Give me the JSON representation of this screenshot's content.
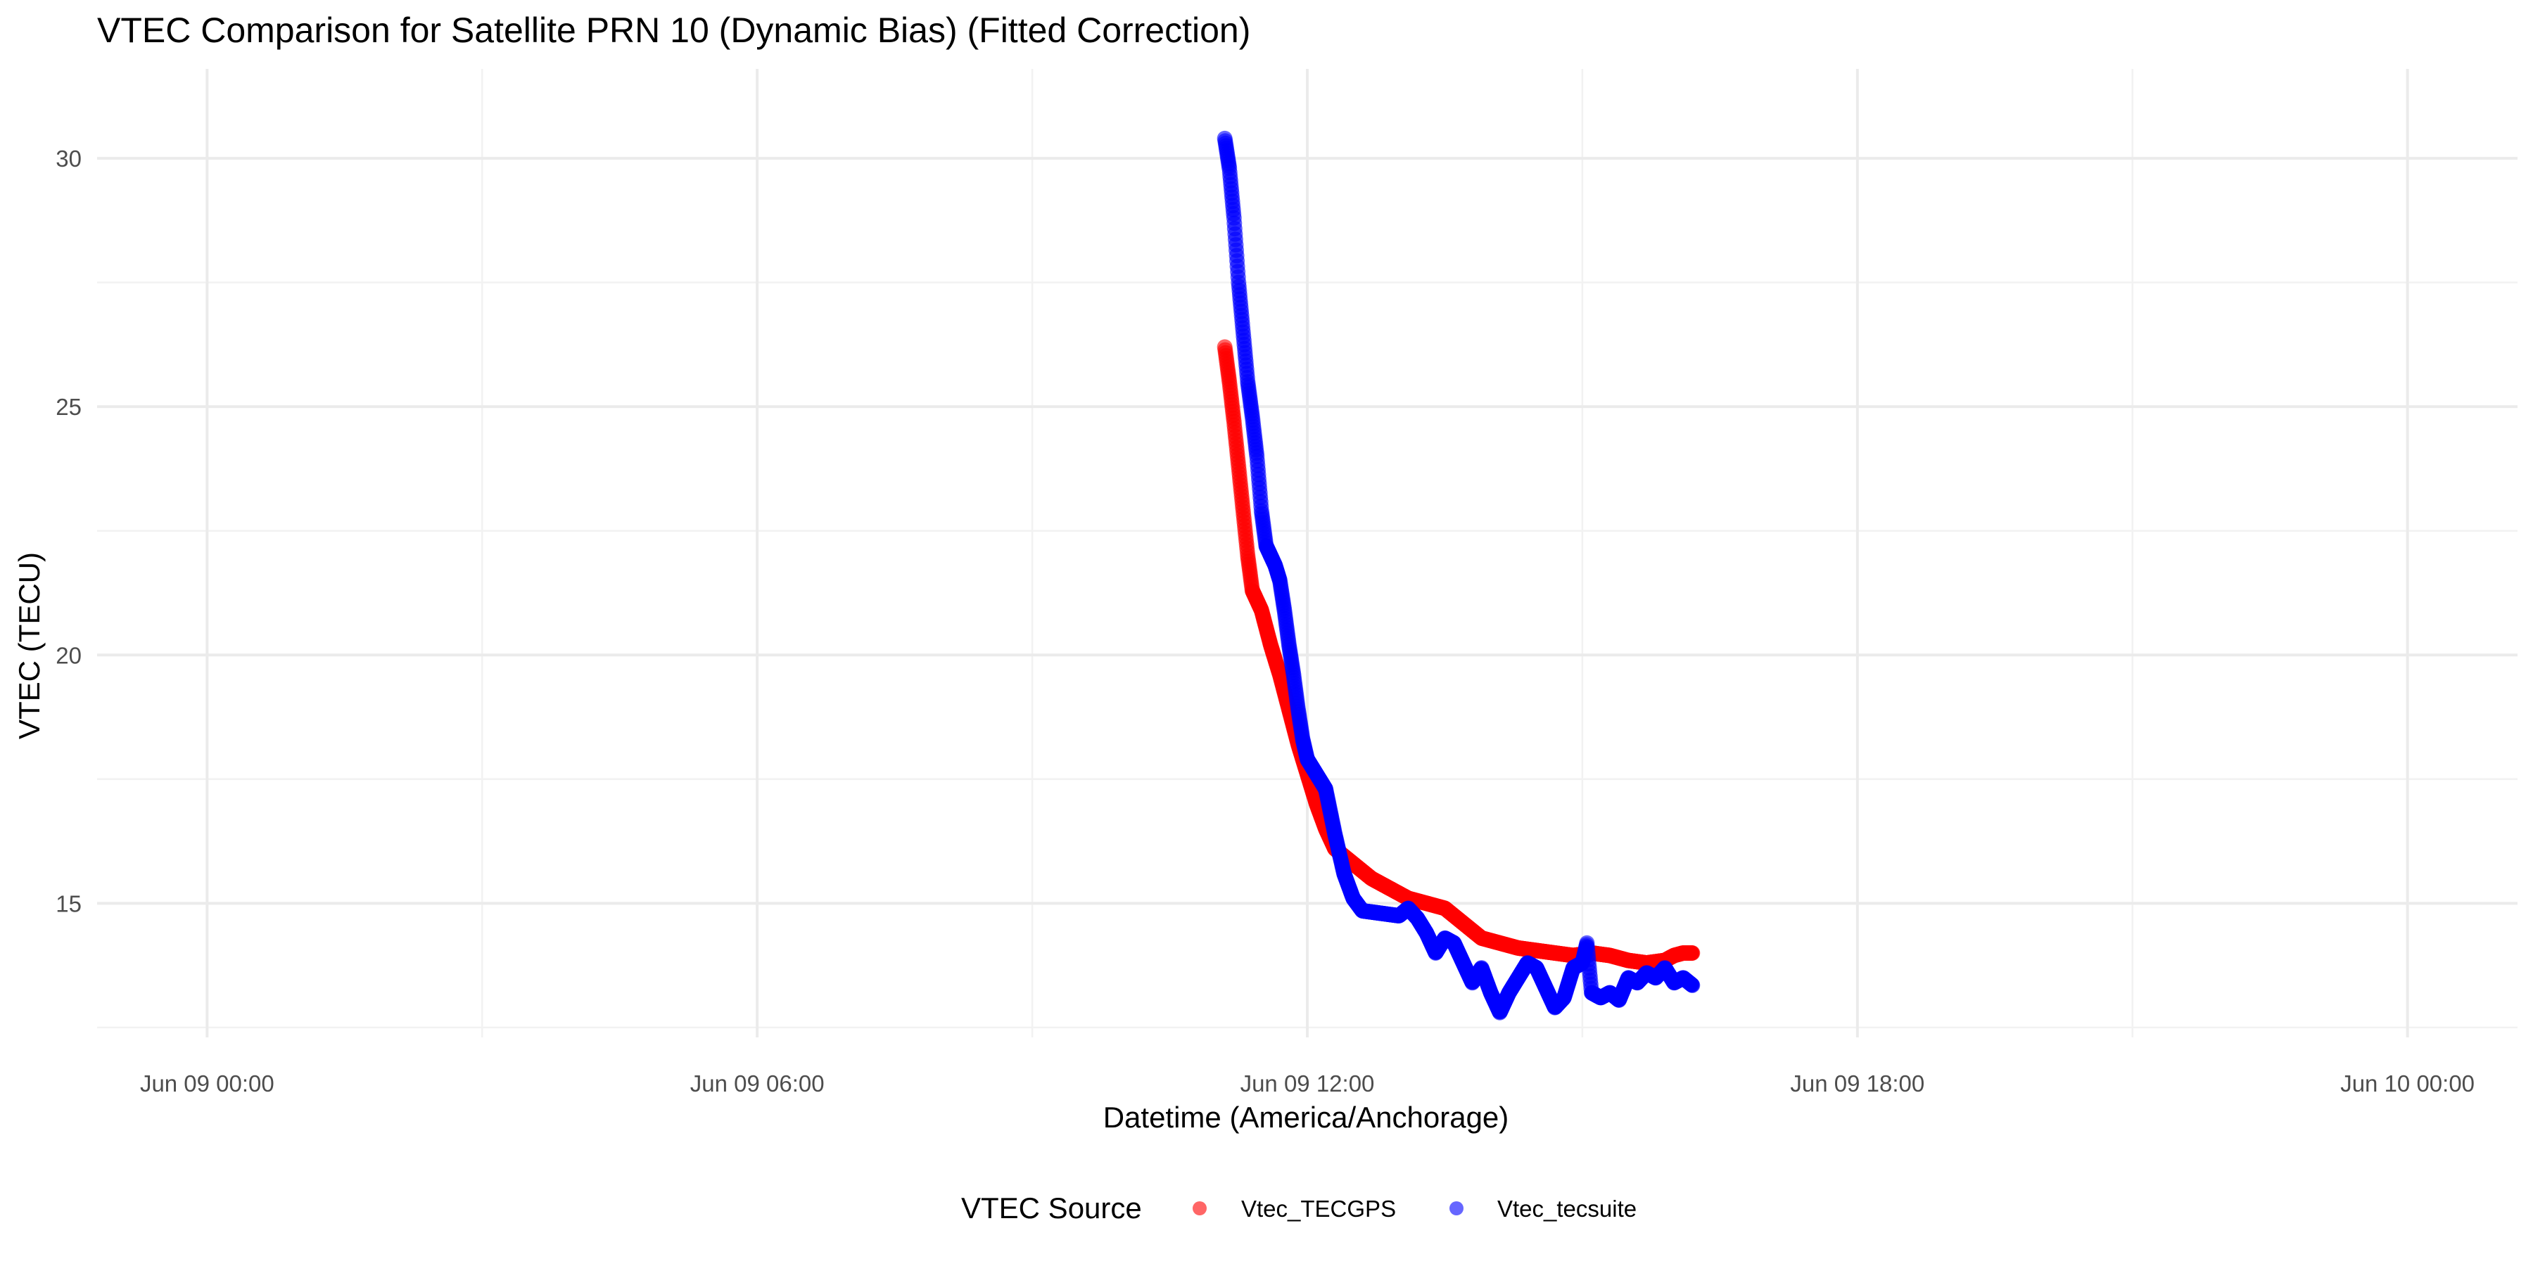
{
  "chart_data": {
    "type": "scatter",
    "title": "VTEC Comparison for Satellite PRN 10 (Dynamic Bias)   (Fitted Correction)",
    "xlabel": "Datetime (America/Anchorage)",
    "ylabel": "VTEC (TECU)",
    "x_type": "datetime",
    "xlim": [
      "2025-06-08 22:48",
      "2025-06-10 01:12"
    ],
    "ylim": [
      12.3,
      31.8
    ],
    "x_ticks": [
      {
        "value": "2025-06-09 00:00",
        "label": "Jun 09 00:00"
      },
      {
        "value": "2025-06-09 06:00",
        "label": "Jun 09 06:00"
      },
      {
        "value": "2025-06-09 12:00",
        "label": "Jun 09 12:00"
      },
      {
        "value": "2025-06-09 18:00",
        "label": "Jun 09 18:00"
      },
      {
        "value": "2025-06-10 00:00",
        "label": "Jun 10 00:00"
      }
    ],
    "x_minor_ticks": [
      "2025-06-09 03:00",
      "2025-06-09 09:00",
      "2025-06-09 15:00",
      "2025-06-09 21:00"
    ],
    "y_ticks": [
      15,
      20,
      25,
      30
    ],
    "y_minor_ticks": [
      12.5,
      17.5,
      22.5,
      27.5
    ],
    "grid": true,
    "legend": {
      "title": "VTEC Source",
      "position": "bottom"
    },
    "series": [
      {
        "name": "Vtec_TECGPS",
        "color": "#ff0000",
        "points": [
          [
            "2025-06-09 11:06",
            26.2
          ],
          [
            "2025-06-09 11:09",
            25.5
          ],
          [
            "2025-06-09 11:12",
            24.7
          ],
          [
            "2025-06-09 11:15",
            23.8
          ],
          [
            "2025-06-09 11:18",
            22.9
          ],
          [
            "2025-06-09 11:21",
            22.0
          ],
          [
            "2025-06-09 11:24",
            21.3
          ],
          [
            "2025-06-09 11:30",
            20.9
          ],
          [
            "2025-06-09 11:36",
            20.2
          ],
          [
            "2025-06-09 11:42",
            19.6
          ],
          [
            "2025-06-09 11:48",
            18.9
          ],
          [
            "2025-06-09 11:54",
            18.2
          ],
          [
            "2025-06-09 12:00",
            17.6
          ],
          [
            "2025-06-09 12:06",
            17.0
          ],
          [
            "2025-06-09 12:12",
            16.5
          ],
          [
            "2025-06-09 12:18",
            16.1
          ],
          [
            "2025-06-09 12:30",
            15.8
          ],
          [
            "2025-06-09 12:42",
            15.5
          ],
          [
            "2025-06-09 12:54",
            15.3
          ],
          [
            "2025-06-09 13:06",
            15.1
          ],
          [
            "2025-06-09 13:18",
            15.0
          ],
          [
            "2025-06-09 13:30",
            14.9
          ],
          [
            "2025-06-09 13:42",
            14.6
          ],
          [
            "2025-06-09 13:54",
            14.3
          ],
          [
            "2025-06-09 14:06",
            14.2
          ],
          [
            "2025-06-09 14:18",
            14.1
          ],
          [
            "2025-06-09 14:30",
            14.05
          ],
          [
            "2025-06-09 14:42",
            14.0
          ],
          [
            "2025-06-09 14:54",
            13.95
          ],
          [
            "2025-06-09 15:06",
            14.0
          ],
          [
            "2025-06-09 15:18",
            13.95
          ],
          [
            "2025-06-09 15:30",
            13.85
          ],
          [
            "2025-06-09 15:42",
            13.8
          ],
          [
            "2025-06-09 15:54",
            13.85
          ],
          [
            "2025-06-09 16:00",
            13.95
          ],
          [
            "2025-06-09 16:06",
            14.0
          ],
          [
            "2025-06-09 16:12",
            14.0
          ]
        ]
      },
      {
        "name": "Vtec_tecsuite",
        "color": "#0000ff",
        "points": [
          [
            "2025-06-09 11:06",
            30.4
          ],
          [
            "2025-06-09 11:09",
            29.8
          ],
          [
            "2025-06-09 11:12",
            28.8
          ],
          [
            "2025-06-09 11:15",
            27.5
          ],
          [
            "2025-06-09 11:18",
            26.5
          ],
          [
            "2025-06-09 11:21",
            25.5
          ],
          [
            "2025-06-09 11:24",
            24.8
          ],
          [
            "2025-06-09 11:27",
            24.0
          ],
          [
            "2025-06-09 11:30",
            22.9
          ],
          [
            "2025-06-09 11:33",
            22.2
          ],
          [
            "2025-06-09 11:36",
            22.0
          ],
          [
            "2025-06-09 11:39",
            21.8
          ],
          [
            "2025-06-09 11:42",
            21.5
          ],
          [
            "2025-06-09 11:45",
            20.9
          ],
          [
            "2025-06-09 11:48",
            20.2
          ],
          [
            "2025-06-09 11:51",
            19.6
          ],
          [
            "2025-06-09 11:54",
            18.9
          ],
          [
            "2025-06-09 11:57",
            18.3
          ],
          [
            "2025-06-09 12:00",
            17.9
          ],
          [
            "2025-06-09 12:06",
            17.6
          ],
          [
            "2025-06-09 12:12",
            17.3
          ],
          [
            "2025-06-09 12:18",
            16.4
          ],
          [
            "2025-06-09 12:24",
            15.6
          ],
          [
            "2025-06-09 12:30",
            15.1
          ],
          [
            "2025-06-09 12:36",
            14.85
          ],
          [
            "2025-06-09 12:48",
            14.8
          ],
          [
            "2025-06-09 13:00",
            14.75
          ],
          [
            "2025-06-09 13:06",
            14.9
          ],
          [
            "2025-06-09 13:12",
            14.7
          ],
          [
            "2025-06-09 13:18",
            14.4
          ],
          [
            "2025-06-09 13:24",
            14.0
          ],
          [
            "2025-06-09 13:30",
            14.3
          ],
          [
            "2025-06-09 13:36",
            14.2
          ],
          [
            "2025-06-09 13:42",
            13.8
          ],
          [
            "2025-06-09 13:48",
            13.4
          ],
          [
            "2025-06-09 13:54",
            13.7
          ],
          [
            "2025-06-09 14:00",
            13.2
          ],
          [
            "2025-06-09 14:06",
            12.8
          ],
          [
            "2025-06-09 14:12",
            13.2
          ],
          [
            "2025-06-09 14:18",
            13.5
          ],
          [
            "2025-06-09 14:24",
            13.8
          ],
          [
            "2025-06-09 14:30",
            13.7
          ],
          [
            "2025-06-09 14:36",
            13.3
          ],
          [
            "2025-06-09 14:42",
            12.9
          ],
          [
            "2025-06-09 14:48",
            13.1
          ],
          [
            "2025-06-09 14:54",
            13.7
          ],
          [
            "2025-06-09 15:00",
            13.8
          ],
          [
            "2025-06-09 15:03",
            14.2
          ],
          [
            "2025-06-09 15:06",
            13.2
          ],
          [
            "2025-06-09 15:12",
            13.1
          ],
          [
            "2025-06-09 15:18",
            13.2
          ],
          [
            "2025-06-09 15:24",
            13.05
          ],
          [
            "2025-06-09 15:30",
            13.5
          ],
          [
            "2025-06-09 15:36",
            13.4
          ],
          [
            "2025-06-09 15:42",
            13.6
          ],
          [
            "2025-06-09 15:48",
            13.5
          ],
          [
            "2025-06-09 15:54",
            13.7
          ],
          [
            "2025-06-09 16:00",
            13.4
          ],
          [
            "2025-06-09 16:06",
            13.5
          ],
          [
            "2025-06-09 16:12",
            13.35
          ]
        ]
      }
    ]
  }
}
